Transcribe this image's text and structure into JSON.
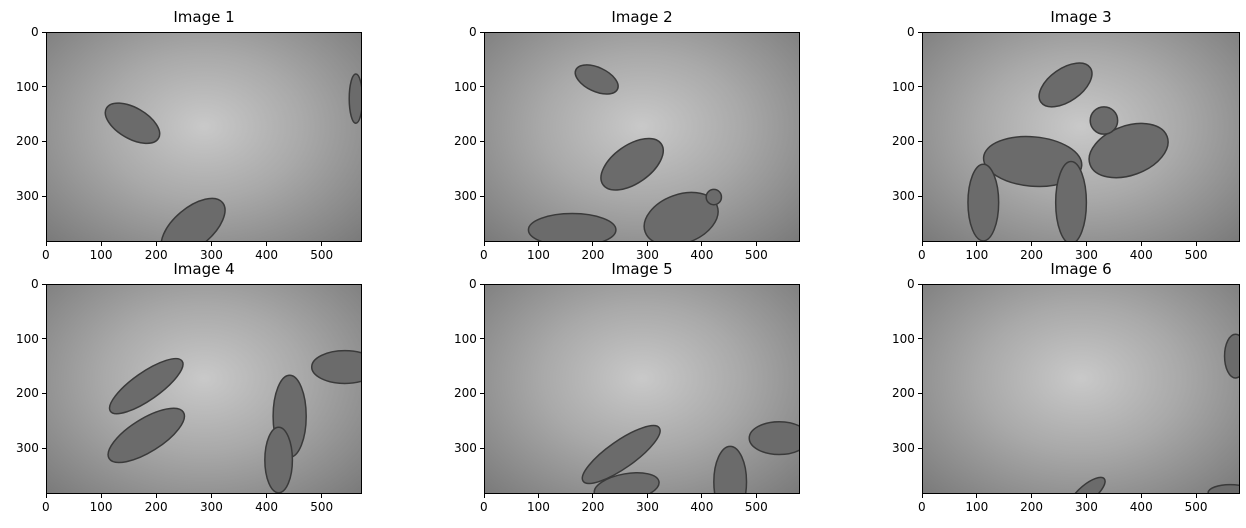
{
  "figure": {
    "panels": [
      {
        "title": "Image 1",
        "xlim": [
          0,
          573
        ],
        "ylim": [
          384,
          0
        ],
        "xticks": [
          0,
          100,
          200,
          300,
          400,
          500
        ],
        "yticks": [
          0,
          100,
          200,
          300
        ]
      },
      {
        "title": "Image 2",
        "xlim": [
          0,
          580
        ],
        "ylim": [
          384,
          0
        ],
        "xticks": [
          0,
          100,
          200,
          300,
          400,
          500
        ],
        "yticks": [
          0,
          100,
          200,
          300
        ]
      },
      {
        "title": "Image 3",
        "xlim": [
          0,
          580
        ],
        "ylim": [
          384,
          0
        ],
        "xticks": [
          0,
          100,
          200,
          300,
          400,
          500
        ],
        "yticks": [
          0,
          100,
          200,
          300
        ]
      },
      {
        "title": "Image 4",
        "xlim": [
          0,
          573
        ],
        "ylim": [
          384,
          0
        ],
        "xticks": [
          0,
          100,
          200,
          300,
          400,
          500
        ],
        "yticks": [
          0,
          100,
          200,
          300
        ]
      },
      {
        "title": "Image 5",
        "xlim": [
          0,
          580
        ],
        "ylim": [
          384,
          0
        ],
        "xticks": [
          0,
          100,
          200,
          300,
          400,
          500
        ],
        "yticks": [
          0,
          100,
          200,
          300
        ]
      },
      {
        "title": "Image 6",
        "xlim": [
          0,
          580
        ],
        "ylim": [
          384,
          0
        ],
        "xticks": [
          0,
          100,
          200,
          300,
          400,
          500
        ],
        "yticks": [
          0,
          100,
          200,
          300
        ]
      }
    ],
    "image_description_colors": {
      "seabed_light": "#c9c9c9",
      "seabed_dark": "#7a7a7a",
      "amphora": "#5a5a5a"
    }
  }
}
